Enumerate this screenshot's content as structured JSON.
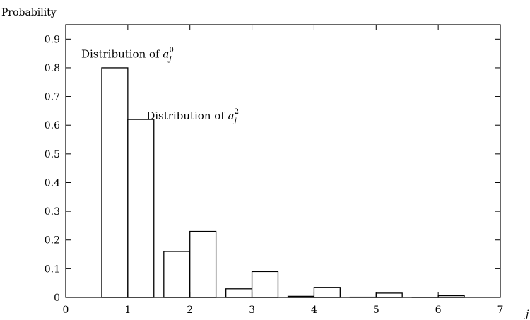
{
  "chart_data": {
    "type": "bar",
    "ylabel": "Probability",
    "xlabel": "j",
    "xlim": [
      0,
      7
    ],
    "ylim": [
      0,
      0.95
    ],
    "xticks": [
      "0",
      "1",
      "2",
      "3",
      "4",
      "5",
      "6",
      "7"
    ],
    "yticks": [
      "0",
      "0.1",
      "0.2",
      "0.3",
      "0.4",
      "0.5",
      "0.6",
      "0.7",
      "0.8",
      "0.9"
    ],
    "x": [
      1,
      2,
      3,
      4,
      5,
      6
    ],
    "bar_half_width": 0.42,
    "series": [
      {
        "name": "Distribution of a_j^0",
        "values": [
          0.8,
          0.16,
          0.03,
          0.004,
          0.001,
          0.0
        ]
      },
      {
        "name": "Distribution of a_j^2",
        "values": [
          0.62,
          0.23,
          0.09,
          0.035,
          0.015,
          0.006
        ]
      }
    ],
    "annotations": [
      {
        "base": "Distribution of ",
        "var": "a",
        "sub": "j",
        "sup": "0",
        "x": 0.25,
        "y": 0.835
      },
      {
        "base": "Distribution of ",
        "var": "a",
        "sub": "j",
        "sup": "2",
        "x": 1.3,
        "y": 0.62
      }
    ]
  }
}
